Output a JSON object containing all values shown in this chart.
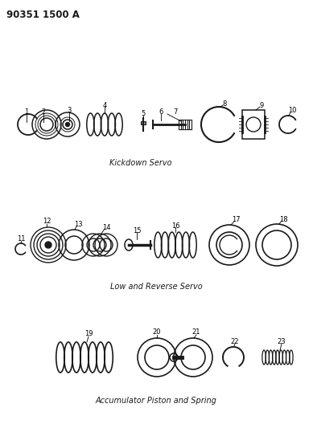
{
  "bg_color": "#ffffff",
  "line_color": "#1a1a1a",
  "title_text": "90351 1500 A",
  "section1_label": "Kickdown Servo",
  "section2_label": "Low and Reverse Servo",
  "section3_label": "Accumulator Piston and Spring",
  "figsize": [
    3.89,
    5.33
  ],
  "dpi": 100,
  "label_fontsize": 6.0,
  "section_fontsize": 7.0,
  "title_fontsize": 8.5
}
